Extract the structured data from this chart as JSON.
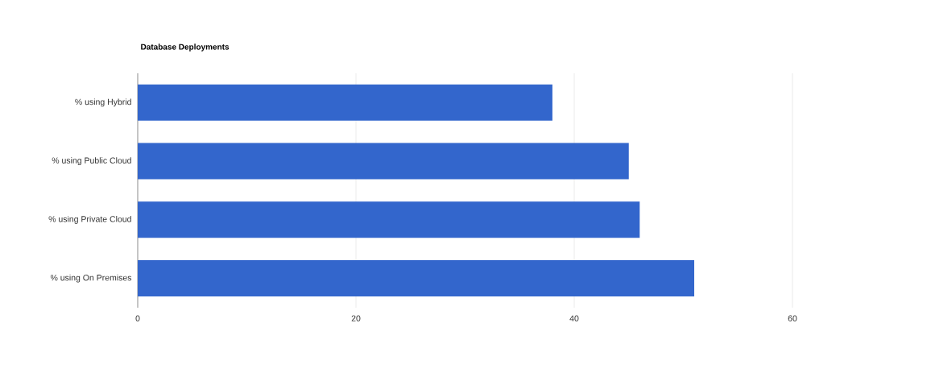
{
  "chart_data": {
    "type": "bar",
    "orientation": "horizontal",
    "title": "Database Deployments",
    "categories": [
      "% using Hybrid",
      "% using Public Cloud",
      "% using Private Cloud",
      "% using On Premises"
    ],
    "values": [
      38,
      45,
      46,
      51
    ],
    "color": "#3366cc",
    "xlim": [
      0,
      60
    ],
    "xticks": [
      0,
      20,
      40,
      60
    ],
    "grid": "x"
  }
}
